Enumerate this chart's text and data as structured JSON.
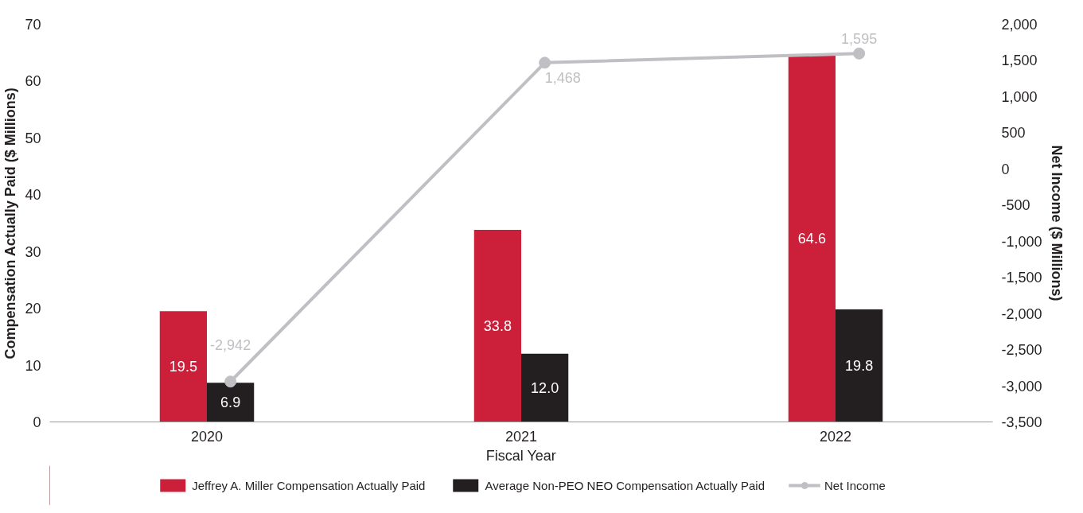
{
  "chart_data": {
    "type": "bar",
    "xlabel": "Fiscal Year",
    "ylabel": "Compensation Actually Paid ($ Millions)",
    "y2label": "Net Income ($ Millions)",
    "categories": [
      "2020",
      "2021",
      "2022"
    ],
    "series": [
      {
        "name": "Jeffrey A. Miller Compensation Actually Paid",
        "color": "#cc1f3a",
        "values": [
          19.5,
          33.8,
          64.6
        ],
        "value_labels": [
          "19.5",
          "33.8",
          "64.6"
        ]
      },
      {
        "name": "Average Non-PEO NEO Compensation Actually Paid",
        "color": "#231f20",
        "values": [
          6.9,
          12.0,
          19.8
        ],
        "value_labels": [
          "6.9",
          "12.0",
          "19.8"
        ]
      },
      {
        "name": "Net Income",
        "type": "line",
        "axis": "y2",
        "color": "#c0c0c4",
        "marker": "circle",
        "values": [
          -2942,
          1468,
          1595
        ],
        "value_labels": [
          "-2,942",
          "1,468",
          "1,595"
        ]
      }
    ],
    "ylim": [
      0,
      70
    ],
    "yticks": [
      0,
      10,
      20,
      30,
      40,
      50,
      60,
      70
    ],
    "y2lim": [
      -3500,
      2000
    ],
    "y2ticks": [
      {
        "value": -3500,
        "label": "-3,500"
      },
      {
        "value": -3000,
        "label": "-3,000"
      },
      {
        "value": -2500,
        "label": "-2,500"
      },
      {
        "value": -2000,
        "label": "-2,000"
      },
      {
        "value": -1500,
        "label": "-1,500"
      },
      {
        "value": -1000,
        "label": "-1,000"
      },
      {
        "value": -500,
        "label": "-500"
      },
      0,
      500,
      {
        "value": 1000,
        "label": "1,000"
      },
      {
        "value": 1500,
        "label": "1,500"
      },
      {
        "value": 2000,
        "label": "2,000"
      }
    ],
    "data_labels": true,
    "grid": false,
    "legend": "bottom"
  }
}
